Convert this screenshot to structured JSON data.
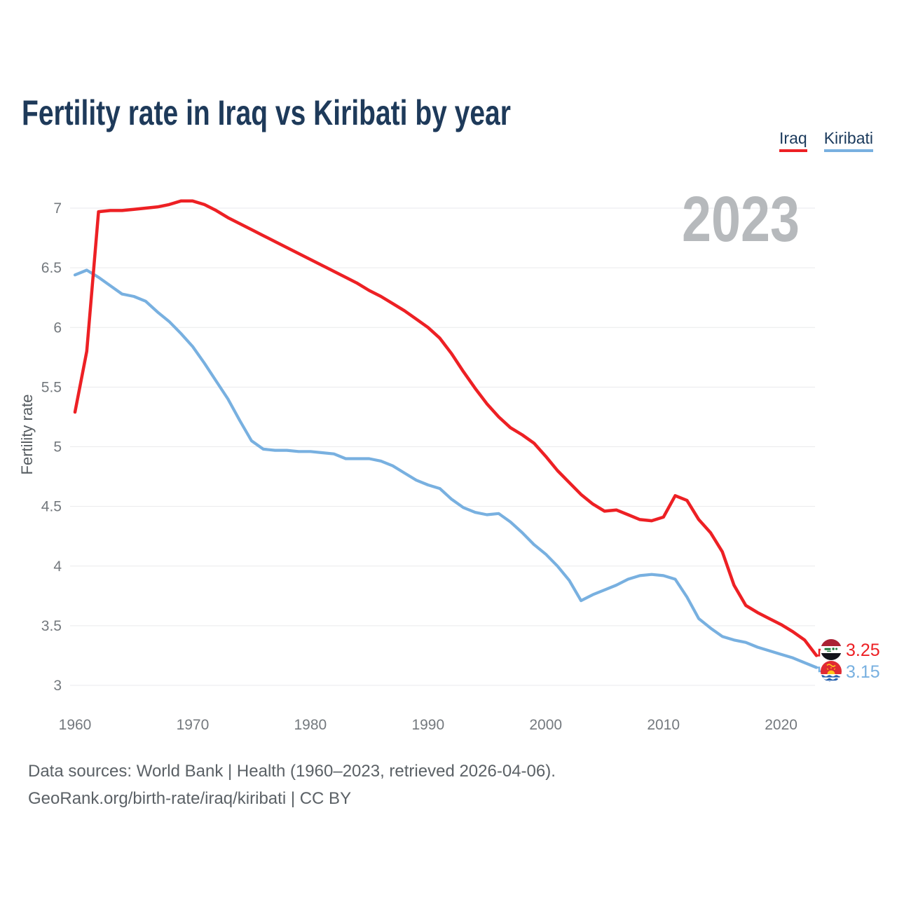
{
  "title": "Fertility rate in Iraq vs Kiribati by year",
  "watermark_year": "2023",
  "legend": [
    {
      "label": "Iraq",
      "color": "#ed2024"
    },
    {
      "label": "Kiribati",
      "color": "#78b0e0"
    }
  ],
  "end_labels": [
    {
      "series": "Iraq",
      "value": "3.25",
      "flag_icon": "iraq-flag-icon"
    },
    {
      "series": "Kiribati",
      "value": "3.15",
      "flag_icon": "kiribati-flag-icon"
    }
  ],
  "footer": {
    "line1": "Data sources: World Bank | Health (1960–2023, retrieved 2026-04-06).",
    "line2": "GeoRank.org/birth-rate/iraq/kiribati | CC BY"
  },
  "chart_data": {
    "type": "line",
    "title": "Fertility rate in Iraq vs Kiribati by year",
    "xlabel": "",
    "ylabel": "Fertility rate",
    "ylim": [
      3,
      7
    ],
    "yticks": [
      3,
      3.5,
      4,
      4.5,
      5,
      5.5,
      6,
      6.5,
      7
    ],
    "xticks": [
      1960,
      1970,
      1980,
      1990,
      2000,
      2010,
      2020
    ],
    "grid": true,
    "legend_position": "top-right",
    "x": [
      1960,
      1961,
      1962,
      1963,
      1964,
      1965,
      1966,
      1967,
      1968,
      1969,
      1970,
      1971,
      1972,
      1973,
      1974,
      1975,
      1976,
      1977,
      1978,
      1979,
      1980,
      1981,
      1982,
      1983,
      1984,
      1985,
      1986,
      1987,
      1988,
      1989,
      1990,
      1991,
      1992,
      1993,
      1994,
      1995,
      1996,
      1997,
      1998,
      1999,
      2000,
      2001,
      2002,
      2003,
      2004,
      2005,
      2006,
      2007,
      2008,
      2009,
      2010,
      2011,
      2012,
      2013,
      2014,
      2015,
      2016,
      2017,
      2018,
      2019,
      2020,
      2021,
      2022,
      2023
    ],
    "series": [
      {
        "name": "Iraq",
        "color": "#ed2024",
        "values": [
          5.29,
          5.8,
          6.97,
          6.98,
          6.98,
          6.99,
          7.0,
          7.01,
          7.03,
          7.06,
          7.06,
          7.03,
          6.98,
          6.92,
          6.87,
          6.82,
          6.77,
          6.72,
          6.67,
          6.62,
          6.57,
          6.52,
          6.47,
          6.42,
          6.37,
          6.31,
          6.26,
          6.2,
          6.14,
          6.07,
          6.0,
          5.91,
          5.78,
          5.63,
          5.49,
          5.36,
          5.25,
          5.16,
          5.1,
          5.03,
          4.92,
          4.8,
          4.7,
          4.6,
          4.52,
          4.46,
          4.47,
          4.43,
          4.39,
          4.38,
          4.41,
          4.59,
          4.55,
          4.39,
          4.28,
          4.12,
          3.84,
          3.67,
          3.61,
          3.56,
          3.51,
          3.45,
          3.38,
          3.25
        ]
      },
      {
        "name": "Kiribati",
        "color": "#78b0e0",
        "values": [
          6.44,
          6.48,
          6.42,
          6.35,
          6.28,
          6.26,
          6.22,
          6.13,
          6.05,
          5.95,
          5.84,
          5.7,
          5.55,
          5.4,
          5.22,
          5.05,
          4.98,
          4.97,
          4.97,
          4.96,
          4.96,
          4.95,
          4.94,
          4.9,
          4.9,
          4.9,
          4.88,
          4.84,
          4.78,
          4.72,
          4.68,
          4.65,
          4.56,
          4.49,
          4.45,
          4.43,
          4.44,
          4.37,
          4.28,
          4.18,
          4.1,
          4.0,
          3.88,
          3.71,
          3.76,
          3.8,
          3.84,
          3.89,
          3.92,
          3.93,
          3.92,
          3.89,
          3.74,
          3.56,
          3.48,
          3.41,
          3.38,
          3.36,
          3.32,
          3.29,
          3.26,
          3.23,
          3.19,
          3.15
        ]
      }
    ]
  }
}
